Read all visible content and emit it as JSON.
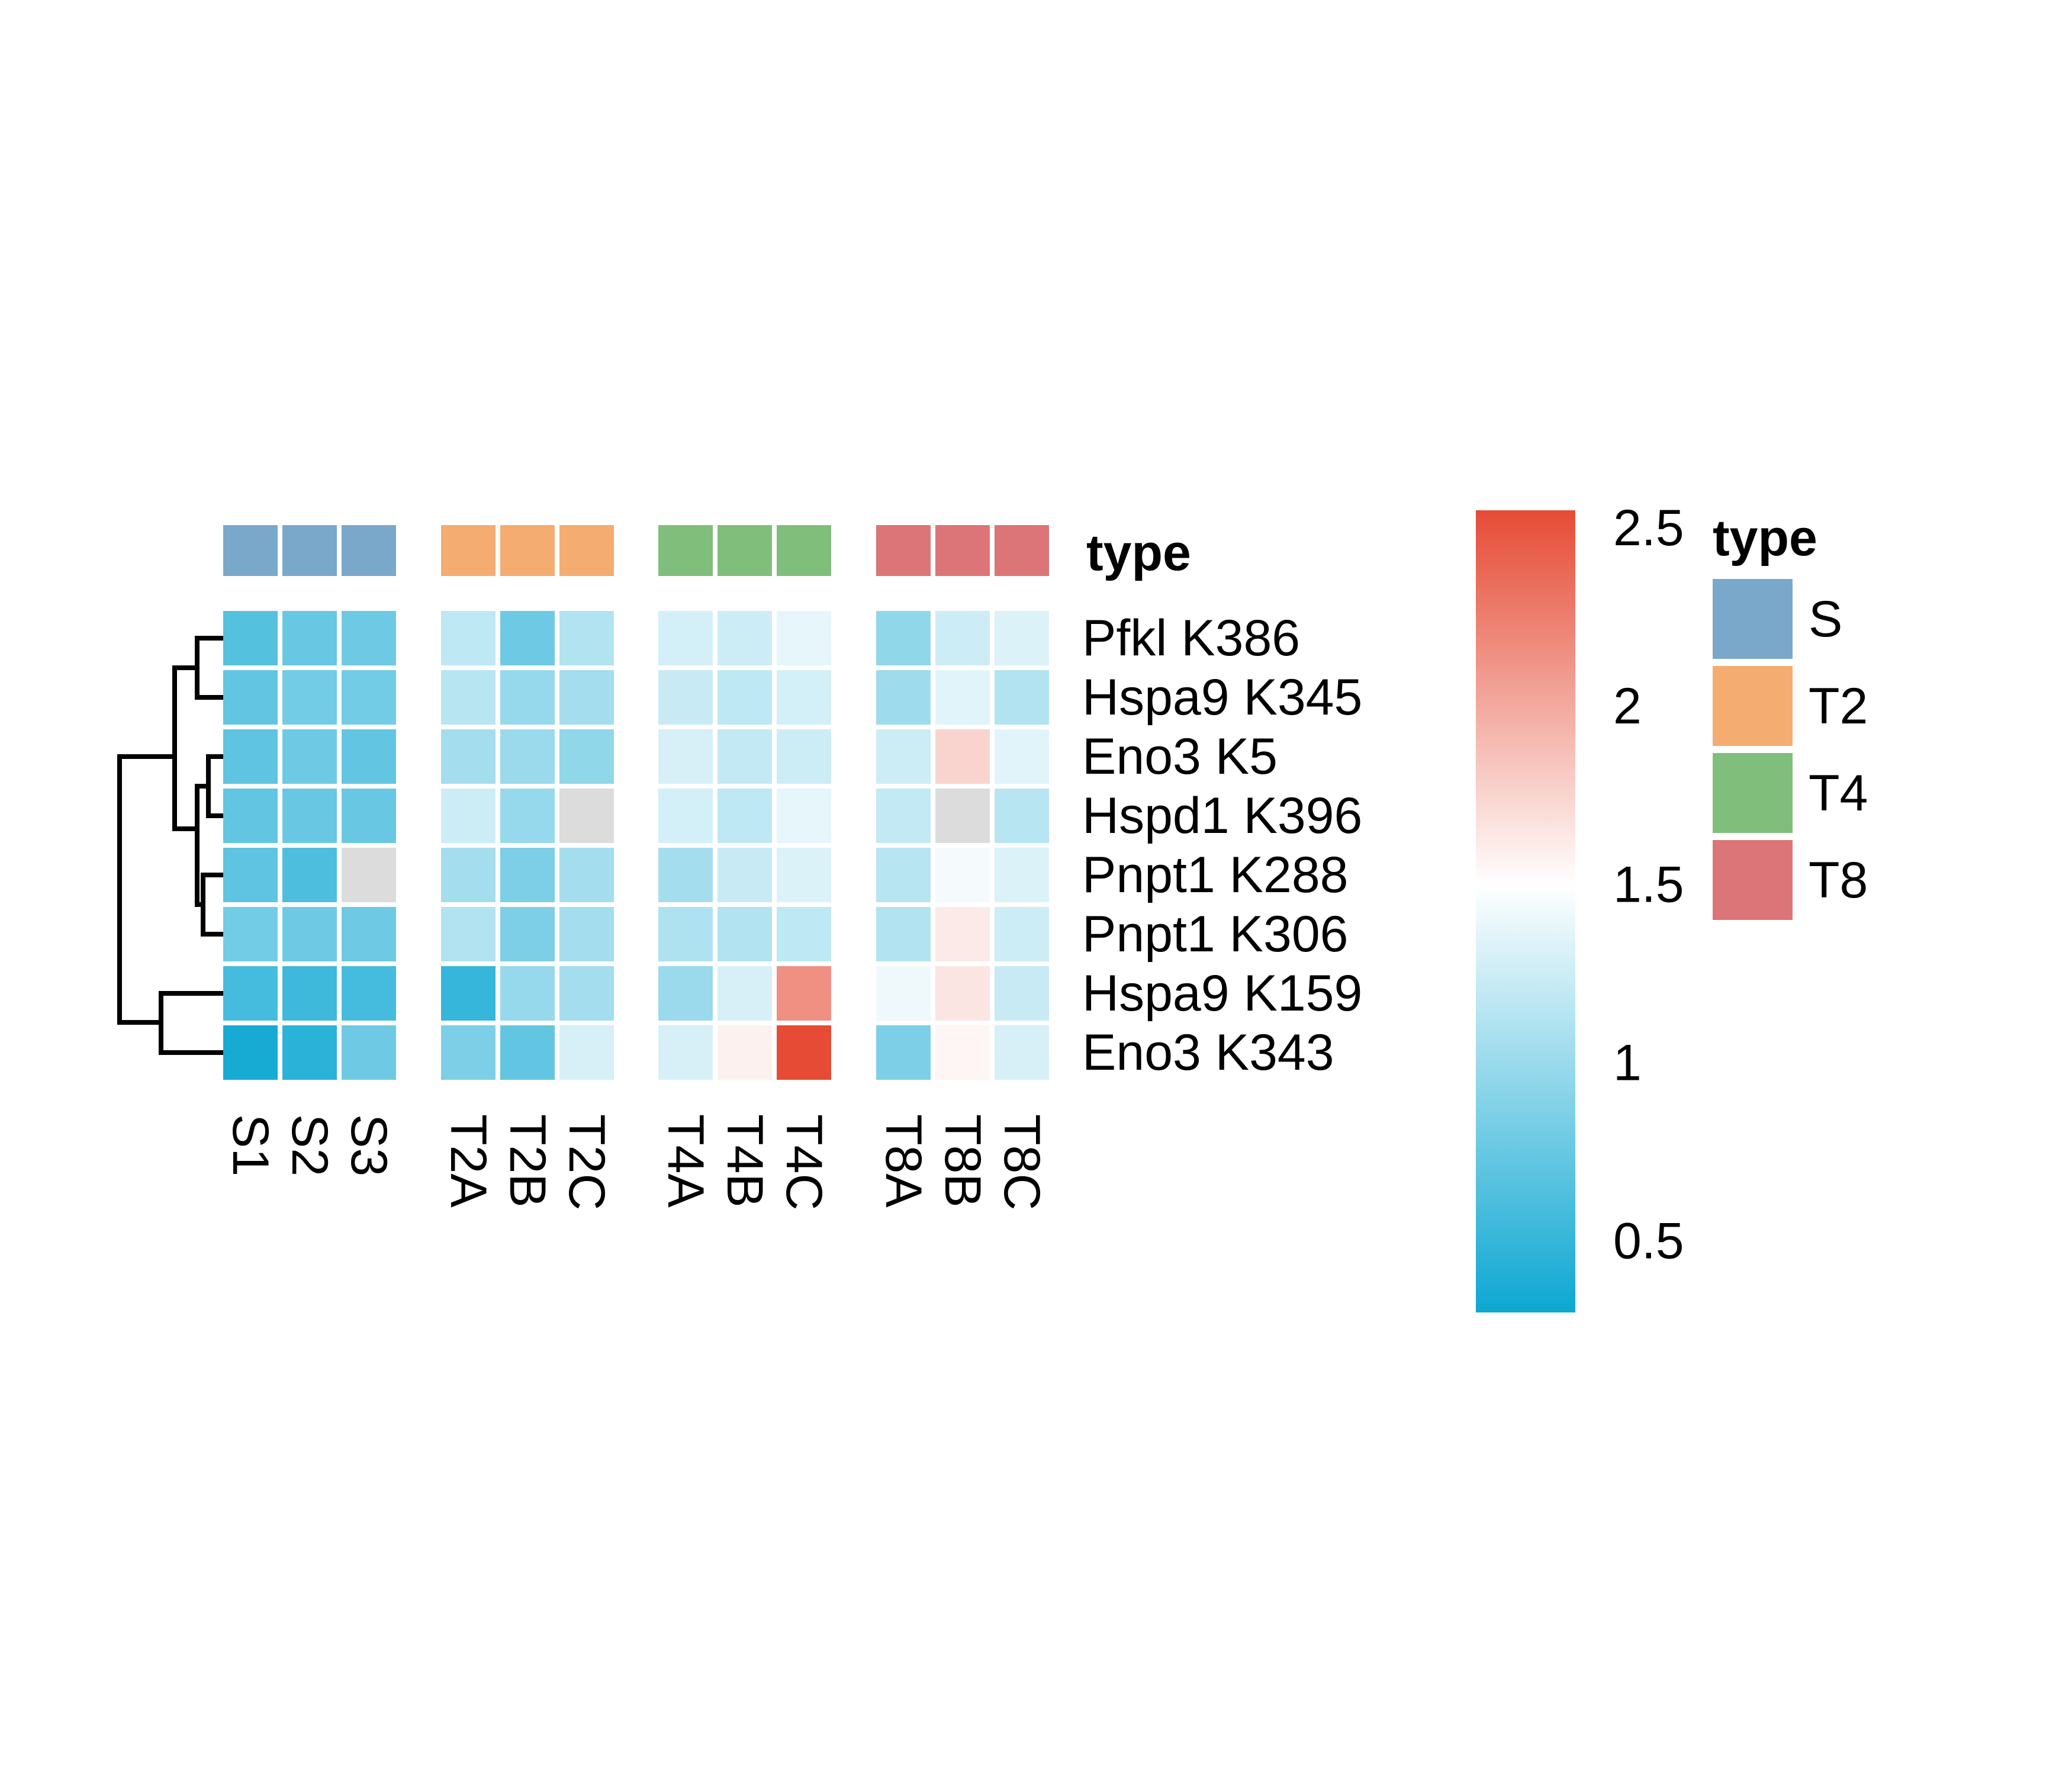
{
  "chart_data": {
    "type": "heatmap",
    "columns": [
      "S1",
      "S2",
      "S3",
      "T2A",
      "T2B",
      "T2C",
      "T4A",
      "T4B",
      "T4C",
      "T8A",
      "T8B",
      "T8C"
    ],
    "column_groups": [
      "S",
      "S",
      "S",
      "T2",
      "T2",
      "T2",
      "T4",
      "T4",
      "T4",
      "T8",
      "T8",
      "T8"
    ],
    "rows": [
      "Pfkl K386",
      "Hspa9 K345",
      "Eno3 K5",
      "Hspd1 K396",
      "Pnpt1 K288",
      "Pnpt1 K306",
      "Hspa9 K159",
      "Eno3 K343"
    ],
    "values": [
      [
        0.65,
        0.75,
        0.78,
        1.18,
        0.78,
        1.12,
        1.28,
        1.25,
        1.38,
        0.95,
        1.25,
        1.32
      ],
      [
        0.72,
        0.8,
        0.8,
        1.15,
        0.98,
        1.05,
        1.22,
        1.18,
        1.28,
        1.02,
        1.35,
        1.12
      ],
      [
        0.7,
        0.78,
        0.72,
        1.05,
        1.0,
        0.95,
        1.3,
        1.2,
        1.25,
        1.25,
        1.75,
        1.35
      ],
      [
        0.72,
        0.75,
        0.75,
        1.25,
        0.98,
        null,
        1.28,
        1.18,
        1.38,
        1.2,
        null,
        1.15
      ],
      [
        0.7,
        0.62,
        null,
        1.05,
        0.85,
        1.05,
        1.05,
        1.22,
        1.32,
        1.15,
        1.45,
        1.32
      ],
      [
        0.8,
        0.78,
        0.78,
        1.12,
        0.85,
        1.05,
        1.1,
        1.12,
        1.18,
        1.12,
        1.62,
        1.25
      ],
      [
        0.58,
        0.55,
        0.58,
        0.5,
        0.98,
        1.05,
        1.0,
        1.3,
        2.15,
        1.42,
        1.65,
        1.22
      ],
      [
        0.35,
        0.45,
        0.78,
        0.85,
        0.72,
        1.3,
        1.3,
        1.58,
        2.55,
        0.85,
        1.55,
        1.3
      ]
    ],
    "na_color": "#DCDCDC",
    "color_scale": {
      "stops": [
        {
          "value": 0.3,
          "color": "#0DA7D2"
        },
        {
          "value": 1.5,
          "color": "#FFFFFF"
        },
        {
          "value": 2.55,
          "color": "#E64B35"
        }
      ]
    },
    "annotation": {
      "name": "type",
      "levels": [
        {
          "label": "S",
          "color": "#79A8CA"
        },
        {
          "label": "T2",
          "color": "#F4AC70"
        },
        {
          "label": "T4",
          "color": "#7FBF7B"
        },
        {
          "label": "T8",
          "color": "#DB7577"
        }
      ]
    },
    "colorbar": {
      "ticks": [
        0.5,
        1,
        1.5,
        2,
        2.5
      ],
      "tick_labels": [
        "0.5",
        "1",
        "1.5",
        "2",
        "2.5"
      ]
    },
    "legend": {
      "title": "type",
      "placement": "right"
    },
    "row_dendrogram": true,
    "xlabel": "",
    "ylabel": ""
  }
}
